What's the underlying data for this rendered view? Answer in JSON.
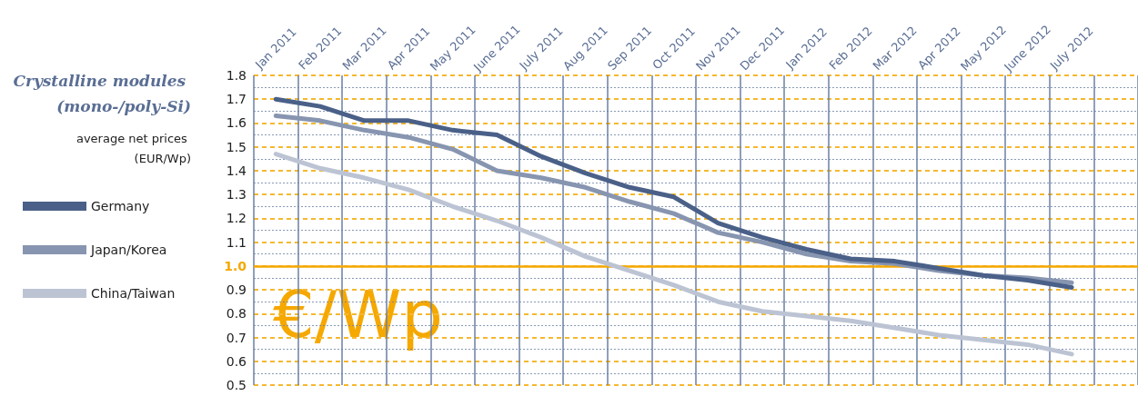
{
  "chart_data": {
    "type": "line",
    "title": "Crystalline modules (mono-/poly-Si)",
    "subtitle": "average net prices (EUR/Wp)",
    "categories": [
      "Jan 2011",
      "Feb 2011",
      "Mar 2011",
      "Apr 2011",
      "May 2011",
      "June 2011",
      "July 2011",
      "Aug 2011",
      "Sep 2011",
      "Oct 2011",
      "Nov 2011",
      "Dec 2011",
      "Jan 2012",
      "Feb 2012",
      "Mar 2012",
      "Apr 2012",
      "May 2012",
      "June 2012",
      "July 2012",
      null
    ],
    "series": [
      {
        "name": "Germany",
        "color": "#4a6088",
        "values": [
          1.7,
          1.67,
          1.61,
          1.61,
          1.57,
          1.55,
          1.46,
          1.39,
          1.33,
          1.29,
          1.18,
          1.12,
          1.07,
          1.03,
          1.02,
          0.99,
          0.96,
          0.94,
          0.91,
          null
        ]
      },
      {
        "name": "Japan/Korea",
        "color": "#8795b0",
        "values": [
          1.63,
          1.61,
          1.57,
          1.54,
          1.49,
          1.4,
          1.37,
          1.33,
          1.27,
          1.22,
          1.14,
          1.1,
          1.05,
          1.02,
          1.01,
          0.98,
          0.96,
          0.95,
          0.93,
          null
        ]
      },
      {
        "name": "China/Taiwan",
        "color": "#bcc4d4",
        "values": [
          1.47,
          1.41,
          1.37,
          1.32,
          1.25,
          1.19,
          1.12,
          1.04,
          0.98,
          0.92,
          0.85,
          0.81,
          0.79,
          0.77,
          0.74,
          0.71,
          0.69,
          0.67,
          0.63,
          null
        ]
      }
    ],
    "ylim": [
      0.5,
      1.8
    ],
    "yticks": [
      {
        "value": 0.5,
        "label": "0.5"
      },
      {
        "value": 0.55,
        "label": null
      },
      {
        "value": 0.6,
        "label": "0.6"
      },
      {
        "value": 0.65,
        "label": null
      },
      {
        "value": 0.7,
        "label": "0.7"
      },
      {
        "value": 0.75,
        "label": null
      },
      {
        "value": 0.8,
        "label": "0.8"
      },
      {
        "value": 0.85,
        "label": null
      },
      {
        "value": 0.9,
        "label": "0.9"
      },
      {
        "value": 0.95,
        "label": null
      },
      {
        "value": 1,
        "label": "1.0"
      },
      {
        "value": 1.05,
        "label": null
      },
      {
        "value": 1.1,
        "label": "1.1"
      },
      {
        "value": 1.15,
        "label": null
      },
      {
        "value": 1.2,
        "label": "1.2"
      },
      {
        "value": 1.25,
        "label": null
      },
      {
        "value": 1.3,
        "label": "1.3"
      },
      {
        "value": 1.35,
        "label": null
      },
      {
        "value": 1.4,
        "label": "1.4"
      },
      {
        "value": 1.45,
        "label": null
      },
      {
        "value": 1.5,
        "label": "1.5"
      },
      {
        "value": 1.55,
        "label": null
      },
      {
        "value": 1.6,
        "label": "1.6"
      },
      {
        "value": 1.65,
        "label": null
      },
      {
        "value": 1.7,
        "label": "1.7"
      },
      {
        "value": 1.75,
        "label": null
      },
      {
        "value": 1.8,
        "label": "1.8"
      }
    ],
    "ref_lines": [
      {
        "axis": "y",
        "value": 1,
        "color": "#f5a800"
      }
    ],
    "annotations": [
      "€/Wp"
    ],
    "grid": true,
    "legend": "left",
    "marker": "none",
    "line_style": "solid"
  }
}
